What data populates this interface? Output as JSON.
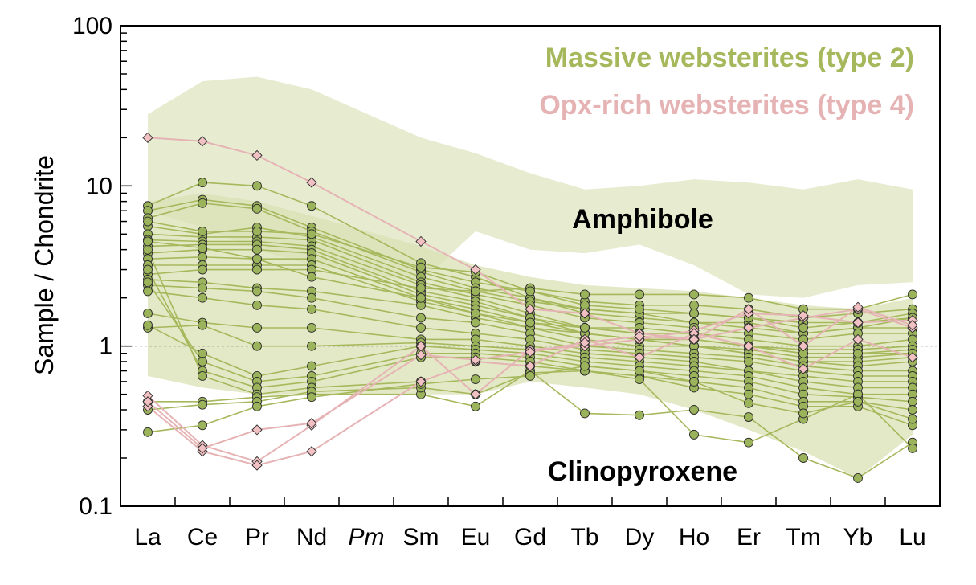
{
  "chart_data": {
    "type": "line",
    "title": "",
    "xlabel": "",
    "ylabel": "Sample / Chondrite",
    "yscale": "log",
    "ylim": [
      0.1,
      100
    ],
    "ytick_labels": [
      "0.1",
      "1",
      "10",
      "100"
    ],
    "reference_line": 1,
    "categories": [
      "La",
      "Ce",
      "Pr",
      "Nd",
      "Pm",
      "Sm",
      "Eu",
      "Gd",
      "Tb",
      "Dy",
      "Ho",
      "Er",
      "Tm",
      "Yb",
      "Lu"
    ],
    "italic_categories": [
      "Pm"
    ],
    "colors": {
      "massive": "#a6b85c",
      "massive_marker": "#9bb35a",
      "opx": "#e6b3b5",
      "opx_marker": "#f1c0c3",
      "band": "#e7ecd1",
      "band_overlap": "#d9e2b4"
    },
    "legend": [
      {
        "label": "Massive websterites (type 2)",
        "color": "#a6b85c"
      },
      {
        "label": "Opx-rich websterites (type 4)",
        "color": "#e6b3b5"
      }
    ],
    "field_labels": {
      "amphibole": "Amphibole",
      "clinopyroxene": "Clinopyroxene"
    },
    "amphibole_field": {
      "categories": [
        "La",
        "Ce",
        "Pr",
        "Nd",
        "Sm",
        "Eu",
        "Gd",
        "Tb",
        "Dy",
        "Ho",
        "Er",
        "Tm",
        "Yb",
        "Lu"
      ],
      "upper": [
        28,
        45,
        48,
        40,
        20,
        16,
        12,
        9.5,
        10,
        11,
        10.5,
        9.5,
        11,
        9.5
      ],
      "lower": [
        7,
        5.5,
        4,
        3.2,
        2.5,
        5.2,
        4,
        3.8,
        4.3,
        3.2,
        2.1,
        2,
        2.4,
        2.5
      ]
    },
    "clinopyroxene_field": {
      "categories": [
        "La",
        "Ce",
        "Pr",
        "Nd",
        "Sm",
        "Eu",
        "Gd",
        "Tb",
        "Dy",
        "Ho",
        "Er",
        "Tm",
        "Yb",
        "Lu"
      ],
      "upper": [
        8,
        9,
        8,
        6.5,
        4.2,
        3.2,
        2.7,
        2.4,
        2.3,
        2.2,
        2.0,
        1.8,
        1.7,
        2.0
      ],
      "lower": [
        0.65,
        0.55,
        0.5,
        0.5,
        0.5,
        0.5,
        0.6,
        0.55,
        0.5,
        0.4,
        0.3,
        0.22,
        0.15,
        0.28
      ]
    },
    "series_massive": [
      {
        "values": [
          7.5,
          10.5,
          10,
          7.5,
          3.3,
          2.7,
          2.0,
          1.7,
          1.6,
          1.4,
          1.4,
          1.2,
          1.3,
          1.5
        ]
      },
      {
        "values": [
          7.0,
          8.2,
          7.5,
          5.5,
          3.0,
          2.5,
          2.2,
          1.9,
          1.8,
          1.8,
          1.7,
          1.5,
          1.6,
          1.7
        ]
      },
      {
        "values": [
          6.3,
          7.8,
          7.2,
          5.2,
          2.9,
          2.3,
          2.0,
          1.6,
          1.5,
          1.4,
          1.3,
          1.2,
          1.3,
          1.3
        ]
      },
      {
        "values": [
          5.6,
          5.0,
          5.5,
          4.8,
          2.7,
          2.2,
          1.9,
          1.7,
          1.6,
          1.6,
          1.5,
          1.4,
          1.4,
          1.6
        ]
      },
      {
        "values": [
          5.0,
          4.8,
          4.8,
          4.6,
          2.5,
          2.1,
          1.8,
          1.5,
          1.4,
          1.3,
          1.2,
          1.1,
          1.2,
          1.2
        ]
      },
      {
        "values": [
          4.6,
          4.5,
          4.5,
          4.2,
          2.4,
          2.0,
          1.6,
          1.3,
          1.3,
          1.2,
          1.1,
          1.0,
          1.0,
          1.1
        ]
      },
      {
        "values": [
          4.2,
          4.3,
          4.3,
          4.0,
          2.2,
          1.9,
          1.5,
          1.3,
          1.2,
          1.2,
          1.0,
          0.95,
          0.95,
          1.0
        ]
      },
      {
        "values": [
          3.8,
          4.0,
          4.0,
          3.8,
          2.1,
          1.8,
          1.5,
          1.2,
          1.1,
          1.1,
          1.0,
          0.9,
          0.9,
          0.95
        ]
      },
      {
        "values": [
          3.5,
          3.6,
          3.5,
          3.5,
          2.0,
          1.7,
          1.4,
          1.2,
          1.1,
          1.0,
          0.95,
          0.85,
          0.85,
          0.9
        ]
      },
      {
        "values": [
          3.2,
          3.2,
          3.2,
          3.2,
          1.9,
          1.6,
          1.3,
          1.1,
          1.0,
          1.0,
          0.9,
          0.8,
          0.8,
          0.85
        ]
      },
      {
        "values": [
          2.8,
          3.0,
          3.0,
          3.0,
          2.3,
          2.2,
          2.3,
          2.1,
          2.1,
          2.1,
          2.0,
          1.7,
          1.7,
          2.1
        ]
      },
      {
        "values": [
          2.6,
          2.5,
          2.3,
          2.2,
          1.8,
          1.5,
          1.3,
          1.2,
          1.1,
          1.0,
          0.9,
          0.8,
          0.75,
          0.8
        ]
      },
      {
        "values": [
          2.4,
          2.3,
          2.2,
          2.0,
          1.5,
          1.4,
          1.2,
          1.0,
          0.95,
          0.9,
          0.85,
          0.75,
          0.7,
          0.7
        ]
      },
      {
        "values": [
          2.2,
          2.0,
          1.8,
          1.7,
          1.3,
          1.2,
          1.1,
          0.95,
          0.9,
          0.85,
          0.8,
          0.7,
          0.65,
          0.65
        ]
      },
      {
        "values": [
          1.6,
          1.4,
          1.3,
          1.3,
          1.1,
          1.1,
          1.0,
          0.9,
          0.85,
          0.8,
          0.7,
          0.65,
          0.6,
          0.6
        ]
      },
      {
        "values": [
          1.3,
          1.35,
          1.0,
          1.0,
          1.05,
          1.0,
          0.95,
          0.85,
          0.8,
          0.75,
          0.7,
          0.6,
          0.55,
          0.55
        ]
      },
      {
        "values": [
          1.35,
          0.9,
          0.65,
          0.75,
          1.0,
          0.95,
          0.9,
          0.8,
          0.75,
          0.7,
          0.65,
          0.55,
          0.5,
          0.5
        ]
      },
      {
        "values": [
          2.5,
          0.8,
          0.6,
          0.65,
          0.9,
          0.9,
          0.85,
          0.75,
          0.7,
          0.65,
          0.6,
          0.5,
          0.48,
          0.45
        ]
      },
      {
        "values": [
          3.0,
          0.7,
          0.55,
          0.6,
          0.85,
          0.85,
          0.8,
          0.7,
          0.65,
          0.6,
          0.55,
          0.45,
          0.45,
          0.4
        ]
      },
      {
        "values": [
          4.0,
          0.65,
          0.5,
          0.55,
          0.6,
          0.8,
          0.75,
          0.7,
          0.65,
          0.55,
          0.5,
          0.42,
          0.42,
          0.32
        ]
      },
      {
        "values": [
          0.45,
          0.45,
          0.48,
          0.5,
          0.5,
          0.42,
          0.7,
          0.38,
          0.37,
          0.4,
          0.36,
          0.2,
          0.15,
          0.25
        ]
      },
      {
        "values": [
          0.4,
          0.43,
          0.45,
          0.52,
          0.55,
          0.5,
          0.68,
          0.7,
          0.62,
          0.28,
          0.25,
          0.35,
          0.5,
          0.23
        ]
      },
      {
        "values": [
          0.29,
          0.32,
          0.42,
          0.48,
          0.58,
          0.62,
          0.65,
          0.75,
          0.7,
          0.6,
          0.44,
          0.38,
          0.45,
          0.35
        ]
      },
      {
        "values": [
          6.0,
          5.2,
          5.2,
          5.0,
          3.1,
          2.9,
          2.2,
          1.8,
          1.7,
          1.6,
          1.5,
          1.3,
          1.4,
          1.5
        ]
      },
      {
        "values": [
          4.5,
          4.1,
          3.5,
          2.7,
          2.0,
          1.6,
          1.4,
          1.3,
          1.2,
          1.1,
          1.0,
          0.9,
          0.9,
          0.9
        ]
      }
    ],
    "series_opx": [
      {
        "values": [
          20,
          19,
          15.5,
          10.5,
          4.5,
          3.0,
          1.7,
          1.6,
          1.2,
          1.1,
          1.3,
          1.5,
          1.7,
          1.3
        ]
      },
      {
        "values": [
          0.49,
          0.24,
          0.19,
          0.32,
          1.0,
          0.5,
          0.95,
          1.0,
          1.1,
          1.25,
          1.6,
          1.55,
          1.4,
          1.45
        ]
      },
      {
        "values": [
          0.42,
          0.22,
          0.18,
          0.22,
          0.6,
          0.8,
          0.75,
          1.1,
          0.85,
          1.2,
          1.0,
          0.72,
          1.1,
          0.85
        ]
      },
      {
        "values": [
          0.45,
          0.23,
          0.3,
          0.33,
          0.88,
          0.82,
          0.92,
          1.05,
          1.15,
          1.1,
          1.7,
          1.0,
          1.75,
          1.35
        ]
      }
    ]
  }
}
